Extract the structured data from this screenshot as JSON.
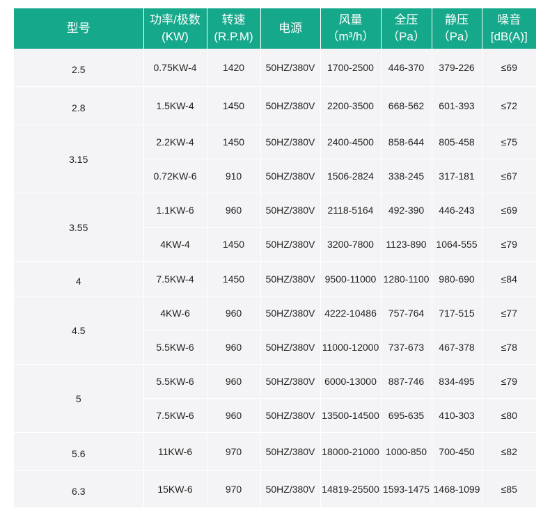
{
  "headers": {
    "model": "型号",
    "power": [
      "功率/极数",
      "(KW)"
    ],
    "speed": [
      "转速",
      "(R.P.M)"
    ],
    "power_supply": "电源",
    "airflow": [
      "风量",
      "（m³/h）"
    ],
    "total_pressure": [
      "全压",
      "（Pa）"
    ],
    "static_pressure": [
      "静压",
      "（Pa）"
    ],
    "noise": [
      "噪音",
      "[dB(A)]"
    ]
  },
  "rows": [
    {
      "model": "2.5",
      "power": "0.75KW-4",
      "speed": "1420",
      "supply": "50HZ/380V",
      "airflow": "1700-2500",
      "total": "446-370",
      "static": "379-226",
      "noise": "≤69"
    },
    {
      "model": "2.8",
      "power": "1.5KW-4",
      "speed": "1450",
      "supply": "50HZ/380V",
      "airflow": "2200-3500",
      "total": "668-562",
      "static": "601-393",
      "noise": "≤72"
    },
    {
      "model": "3.15",
      "power": "2.2KW-4",
      "speed": "1450",
      "supply": "50HZ/380V",
      "airflow": "2400-4500",
      "total": "858-644",
      "static": "805-458",
      "noise": "≤75"
    },
    {
      "model": "",
      "power": "0.72KW-6",
      "speed": "910",
      "supply": "50HZ/380V",
      "airflow": "1506-2824",
      "total": "338-245",
      "static": "317-181",
      "noise": "≤67"
    },
    {
      "model": "3.55",
      "power": "1.1KW-6",
      "speed": "960",
      "supply": "50HZ/380V",
      "airflow": "2118-5164",
      "total": "492-390",
      "static": "446-243",
      "noise": "≤69"
    },
    {
      "model": "",
      "power": "4KW-4",
      "speed": "1450",
      "supply": "50HZ/380V",
      "airflow": "3200-7800",
      "total": "1123-890",
      "static": "1064-555",
      "noise": "≤79"
    },
    {
      "model": "4",
      "power": "7.5KW-4",
      "speed": "1450",
      "supply": "50HZ/380V",
      "airflow": "9500-11000",
      "total": "1280-1100",
      "static": "980-690",
      "noise": "≤84"
    },
    {
      "model": "4.5",
      "power": "4KW-6",
      "speed": "960",
      "supply": "50HZ/380V",
      "airflow": "4222-10486",
      "total": "757-764",
      "static": "717-515",
      "noise": "≤77"
    },
    {
      "model": "",
      "power": "5.5KW-6",
      "speed": "960",
      "supply": "50HZ/380V",
      "airflow": "11000-12000",
      "total": "737-673",
      "static": "467-378",
      "noise": "≤78"
    },
    {
      "model": "5",
      "power": "5.5KW-6",
      "speed": "960",
      "supply": "50HZ/380V",
      "airflow": "6000-13000",
      "total": "887-746",
      "static": "834-495",
      "noise": "≤79"
    },
    {
      "model": "",
      "power": "7.5KW-6",
      "speed": "960",
      "supply": "50HZ/380V",
      "airflow": "13500-14500",
      "total": "695-635",
      "static": "410-303",
      "noise": "≤80"
    },
    {
      "model": "5.6",
      "power": "11KW-6",
      "speed": "970",
      "supply": "50HZ/380V",
      "airflow": "18000-21000",
      "total": "1000-850",
      "static": "700-450",
      "noise": "≤82"
    },
    {
      "model": "6.3",
      "power": "15KW-6",
      "speed": "970",
      "supply": "50HZ/380V",
      "airflow": "14819-25500",
      "total": "1593-1475",
      "static": "1468-1099",
      "noise": "≤85"
    }
  ]
}
